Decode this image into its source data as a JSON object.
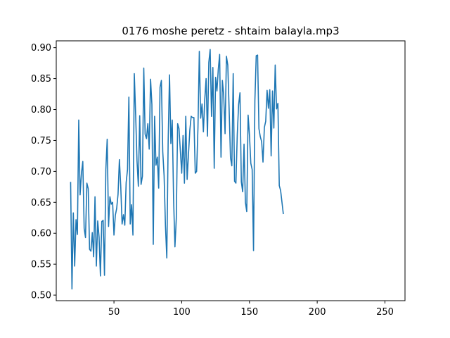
{
  "chart_data": {
    "type": "line",
    "title": "0176 moshe peretz - shtaim balayla.mp3",
    "xlabel": "",
    "ylabel": "",
    "xlim": [
      7.4,
      264.8
    ],
    "ylim": [
      0.491,
      0.911
    ],
    "x_ticks": [
      50,
      100,
      150,
      200,
      250
    ],
    "x_tick_labels": [
      "50",
      "100",
      "150",
      "200",
      "250"
    ],
    "y_ticks": [
      0.5,
      0.55,
      0.6,
      0.65,
      0.7,
      0.75,
      0.8,
      0.85,
      0.9
    ],
    "y_tick_labels": [
      "0.50",
      "0.55",
      "0.60",
      "0.65",
      "0.70",
      "0.75",
      "0.80",
      "0.85",
      "0.90"
    ],
    "grid": false,
    "series": [
      {
        "color": "#1f77b4",
        "x_start": 18,
        "x_step": 1,
        "values": [
          0.683,
          0.51,
          0.633,
          0.547,
          0.622,
          0.598,
          0.783,
          0.662,
          0.697,
          0.716,
          0.608,
          0.593,
          0.681,
          0.672,
          0.574,
          0.571,
          0.601,
          0.562,
          0.659,
          0.547,
          0.62,
          0.594,
          0.531,
          0.619,
          0.621,
          0.532,
          0.703,
          0.752,
          0.611,
          0.659,
          0.647,
          0.65,
          0.597,
          0.629,
          0.64,
          0.663,
          0.719,
          0.676,
          0.615,
          0.63,
          0.613,
          0.682,
          0.703,
          0.82,
          0.615,
          0.646,
          0.597,
          0.858,
          0.792,
          0.717,
          0.676,
          0.79,
          0.679,
          0.692,
          0.867,
          0.76,
          0.753,
          0.777,
          0.736,
          0.849,
          0.808,
          0.582,
          0.789,
          0.71,
          0.723,
          0.673,
          0.836,
          0.847,
          0.732,
          0.693,
          0.612,
          0.56,
          0.749,
          0.856,
          0.745,
          0.783,
          0.656,
          0.578,
          0.624,
          0.777,
          0.769,
          0.733,
          0.697,
          0.758,
          0.681,
          0.789,
          0.687,
          0.728,
          0.767,
          0.789,
          0.787,
          0.787,
          0.697,
          0.7,
          0.771,
          0.894,
          0.786,
          0.809,
          0.764,
          0.816,
          0.85,
          0.757,
          0.876,
          0.897,
          0.789,
          0.868,
          0.705,
          0.852,
          0.83,
          0.865,
          0.889,
          0.723,
          0.847,
          0.823,
          0.761,
          0.886,
          0.872,
          0.8,
          0.722,
          0.709,
          0.858,
          0.684,
          0.681,
          0.759,
          0.808,
          0.827,
          0.683,
          0.667,
          0.744,
          0.65,
          0.635,
          0.791,
          0.759,
          0.713,
          0.703,
          0.572,
          0.814,
          0.887,
          0.888,
          0.769,
          0.756,
          0.748,
          0.715,
          0.771,
          0.781,
          0.831,
          0.802,
          0.832,
          0.725,
          0.83,
          0.77,
          0.872,
          0.801,
          0.81,
          0.677,
          0.669,
          0.65,
          0.631
        ]
      }
    ]
  }
}
